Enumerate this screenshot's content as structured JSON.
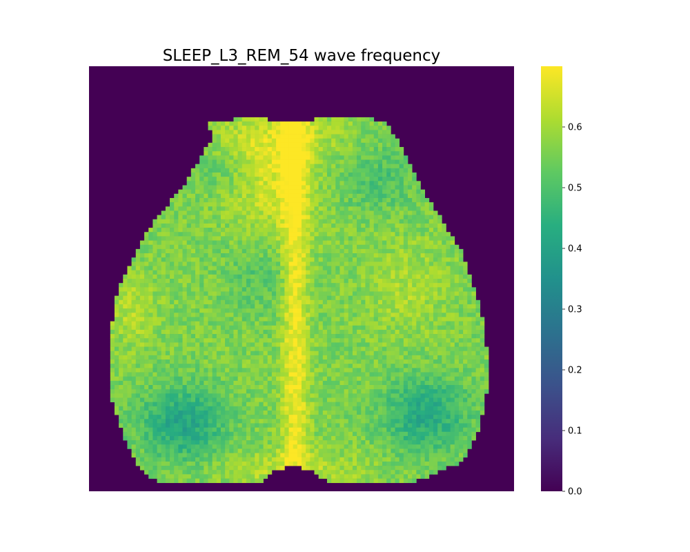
{
  "chart_data": {
    "type": "heatmap",
    "title": "SLEEP_L3_REM_54 wave frequency",
    "colormap": "viridis",
    "vmin": 0.0,
    "vmax": 0.7,
    "colorbar": {
      "ticks": [
        0.0,
        0.1,
        0.2,
        0.3,
        0.4,
        0.5,
        0.6
      ],
      "tick_labels": [
        "0.0",
        "0.1",
        "0.2",
        "0.3",
        "0.4",
        "0.5",
        "0.6"
      ]
    },
    "axes_visible": false,
    "background_value": 0.0,
    "grid_shape": [
      100,
      100
    ],
    "regions": {
      "cortex_mask_value_range": [
        0.38,
        0.7
      ],
      "midline_high_value": 0.69,
      "posterior_low_value": 0.38,
      "outside_value": 0.0
    }
  }
}
